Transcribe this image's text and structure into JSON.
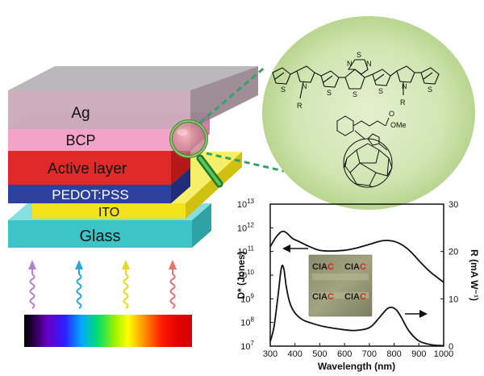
{
  "device": {
    "layers": [
      {
        "name": "Ag",
        "color": "#c9a7b8"
      },
      {
        "name": "BCP",
        "color": "#f2a3c7"
      },
      {
        "name": "Active layer",
        "color": "#e02a2a"
      },
      {
        "name": "PEDOT:PSS",
        "color": "#2e3f9c"
      },
      {
        "name": "ITO",
        "color": "#f2e31c"
      },
      {
        "name": "Glass",
        "color": "#3cc4c6"
      }
    ]
  },
  "molecule": {
    "r_label_1": "R",
    "r_label_2": "R",
    "n_label_1": "N",
    "n_label_2": "N",
    "s_labels": [
      "S",
      "S",
      "S",
      "S",
      "S",
      "S",
      "S"
    ],
    "bt_n_1": "N",
    "bt_n_2": "N",
    "bt_s": "S",
    "ester": "OMe",
    "carbonyl_o": "O"
  },
  "light_arrows": {
    "colors": [
      "#b480d6",
      "#2aa7e0",
      "#e8d81c",
      "#e8706e"
    ]
  },
  "inset": {
    "labels": [
      {
        "prefix": "CIA",
        "suffix": "C"
      },
      {
        "prefix": "CIA",
        "suffix": "C"
      },
      {
        "prefix": "CIA",
        "suffix": "C"
      },
      {
        "prefix": "CIA",
        "suffix": "C"
      }
    ],
    "suffix_color": "#d8281c"
  },
  "chart_data": {
    "type": "line",
    "xlabel": "Wavelength (nm)",
    "ylabel_left": "D* (Jones)",
    "ylabel_right": "R (mA W⁻¹)",
    "xlim": [
      300,
      1000
    ],
    "x_ticks": [
      "300",
      "400",
      "500",
      "600",
      "700",
      "800",
      "900",
      "1000"
    ],
    "ylim_left_log10": [
      7,
      13
    ],
    "y_left_ticks": [
      {
        "base": "10",
        "exp": "7",
        "value": 7
      },
      {
        "base": "10",
        "exp": "8",
        "value": 8
      },
      {
        "base": "10",
        "exp": "9",
        "value": 9
      },
      {
        "base": "10",
        "exp": "10",
        "value": 10
      },
      {
        "base": "10",
        "exp": "11",
        "value": 11
      },
      {
        "base": "10",
        "exp": "12",
        "value": 12
      },
      {
        "base": "10",
        "exp": "13",
        "value": 13
      }
    ],
    "ylim_right": [
      0,
      30
    ],
    "y_right_ticks": [
      "0",
      "10",
      "20",
      "30"
    ],
    "series": [
      {
        "name": "D*",
        "axis": "left",
        "x": [
          300,
          320,
          340,
          355,
          370,
          390,
          420,
          460,
          500,
          550,
          600,
          650,
          700,
          750,
          790,
          820,
          850,
          880,
          910,
          950,
          1000
        ],
        "log10_values": [
          11.2,
          11.55,
          11.8,
          11.85,
          11.75,
          11.55,
          11.4,
          11.2,
          11.05,
          11.02,
          11.05,
          11.15,
          11.3,
          11.45,
          11.45,
          11.35,
          11.15,
          10.85,
          10.5,
          10.1,
          9.7
        ]
      },
      {
        "name": "R",
        "axis": "right",
        "x": [
          300,
          315,
          330,
          345,
          355,
          365,
          380,
          400,
          430,
          470,
          520,
          580,
          640,
          700,
          740,
          770,
          790,
          810,
          830,
          860,
          900,
          950,
          1000
        ],
        "values": [
          1.0,
          4.0,
          10.0,
          16.5,
          16.3,
          12.5,
          9.0,
          7.0,
          5.6,
          4.8,
          4.1,
          3.6,
          3.3,
          3.9,
          6.0,
          7.8,
          8.2,
          7.6,
          6.0,
          3.2,
          1.1,
          0.3,
          0.1
        ]
      }
    ],
    "arrows": [
      {
        "series": "D*",
        "direction": "left"
      },
      {
        "series": "R",
        "direction": "right"
      }
    ]
  }
}
